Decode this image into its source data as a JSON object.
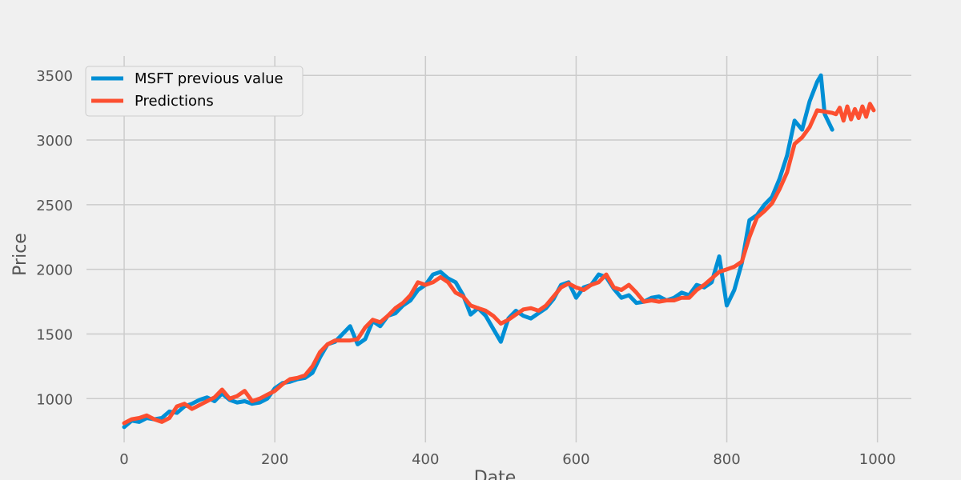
{
  "chart_data": {
    "type": "line",
    "title": "",
    "xlabel": "Date",
    "ylabel": "Price",
    "xlim": [
      -50,
      1045
    ],
    "ylim": [
      680,
      3650
    ],
    "xticks": [
      0,
      200,
      400,
      600,
      800,
      1000
    ],
    "yticks": [
      1000,
      1500,
      2000,
      2500,
      3000,
      3500
    ],
    "grid": true,
    "legend_position": "upper-left",
    "series": [
      {
        "name": "MSFT previous value",
        "color": "#008fd5",
        "x": [
          0,
          10,
          20,
          30,
          40,
          50,
          60,
          70,
          80,
          90,
          100,
          110,
          120,
          130,
          140,
          150,
          160,
          170,
          180,
          190,
          200,
          210,
          220,
          230,
          240,
          250,
          260,
          270,
          280,
          290,
          300,
          310,
          320,
          330,
          340,
          350,
          360,
          370,
          380,
          390,
          400,
          410,
          420,
          430,
          440,
          450,
          460,
          470,
          480,
          490,
          500,
          510,
          520,
          530,
          540,
          550,
          560,
          570,
          580,
          590,
          600,
          610,
          620,
          630,
          640,
          650,
          660,
          670,
          680,
          690,
          700,
          710,
          720,
          730,
          740,
          750,
          760,
          770,
          780,
          790,
          800,
          810,
          820,
          830,
          840,
          850,
          860,
          870,
          880,
          890,
          900,
          910,
          920,
          925,
          930,
          940
        ],
        "values": [
          780,
          830,
          820,
          850,
          840,
          850,
          900,
          890,
          940,
          960,
          990,
          1010,
          980,
          1040,
          990,
          970,
          980,
          960,
          970,
          1000,
          1080,
          1120,
          1130,
          1150,
          1160,
          1200,
          1320,
          1420,
          1440,
          1500,
          1560,
          1420,
          1460,
          1600,
          1560,
          1640,
          1660,
          1720,
          1760,
          1840,
          1880,
          1960,
          1980,
          1930,
          1900,
          1800,
          1650,
          1700,
          1640,
          1540,
          1440,
          1620,
          1680,
          1640,
          1620,
          1660,
          1700,
          1770,
          1880,
          1900,
          1780,
          1860,
          1880,
          1960,
          1940,
          1850,
          1780,
          1800,
          1740,
          1750,
          1780,
          1790,
          1760,
          1780,
          1820,
          1800,
          1880,
          1860,
          1900,
          2100,
          1720,
          1840,
          2050,
          2380,
          2420,
          2500,
          2560,
          2700,
          2880,
          3150,
          3080,
          3300,
          3450,
          3500,
          3200,
          3080
        ]
      },
      {
        "name": "Predictions",
        "color": "#fc4f30",
        "x": [
          0,
          10,
          20,
          30,
          40,
          50,
          60,
          70,
          80,
          90,
          100,
          110,
          120,
          130,
          140,
          150,
          160,
          170,
          180,
          190,
          200,
          210,
          220,
          230,
          240,
          250,
          260,
          270,
          280,
          290,
          300,
          310,
          320,
          330,
          340,
          350,
          360,
          370,
          380,
          390,
          400,
          410,
          420,
          430,
          440,
          450,
          460,
          470,
          480,
          490,
          500,
          510,
          520,
          530,
          540,
          550,
          560,
          570,
          580,
          590,
          600,
          610,
          620,
          630,
          640,
          650,
          660,
          670,
          680,
          690,
          700,
          710,
          720,
          730,
          740,
          750,
          760,
          770,
          780,
          790,
          800,
          810,
          820,
          830,
          840,
          850,
          860,
          870,
          880,
          890,
          900,
          910,
          920,
          930,
          940,
          945,
          950,
          955,
          960,
          965,
          970,
          975,
          980,
          985,
          990,
          995
        ],
        "values": [
          810,
          840,
          850,
          870,
          840,
          820,
          850,
          940,
          960,
          920,
          950,
          980,
          1010,
          1070,
          1000,
          1020,
          1060,
          980,
          1000,
          1030,
          1060,
          1110,
          1150,
          1160,
          1180,
          1250,
          1360,
          1420,
          1450,
          1450,
          1450,
          1460,
          1550,
          1610,
          1590,
          1640,
          1700,
          1740,
          1800,
          1900,
          1880,
          1900,
          1940,
          1900,
          1820,
          1790,
          1720,
          1700,
          1680,
          1640,
          1580,
          1610,
          1650,
          1690,
          1700,
          1680,
          1720,
          1790,
          1860,
          1890,
          1860,
          1840,
          1880,
          1900,
          1960,
          1860,
          1840,
          1880,
          1820,
          1750,
          1760,
          1750,
          1760,
          1760,
          1780,
          1780,
          1840,
          1880,
          1930,
          1980,
          2000,
          2020,
          2060,
          2250,
          2400,
          2450,
          2510,
          2620,
          2750,
          2970,
          3020,
          3100,
          3230,
          3220,
          3210,
          3200,
          3250,
          3150,
          3260,
          3160,
          3240,
          3170,
          3260,
          3180,
          3280,
          3230
        ]
      }
    ]
  }
}
